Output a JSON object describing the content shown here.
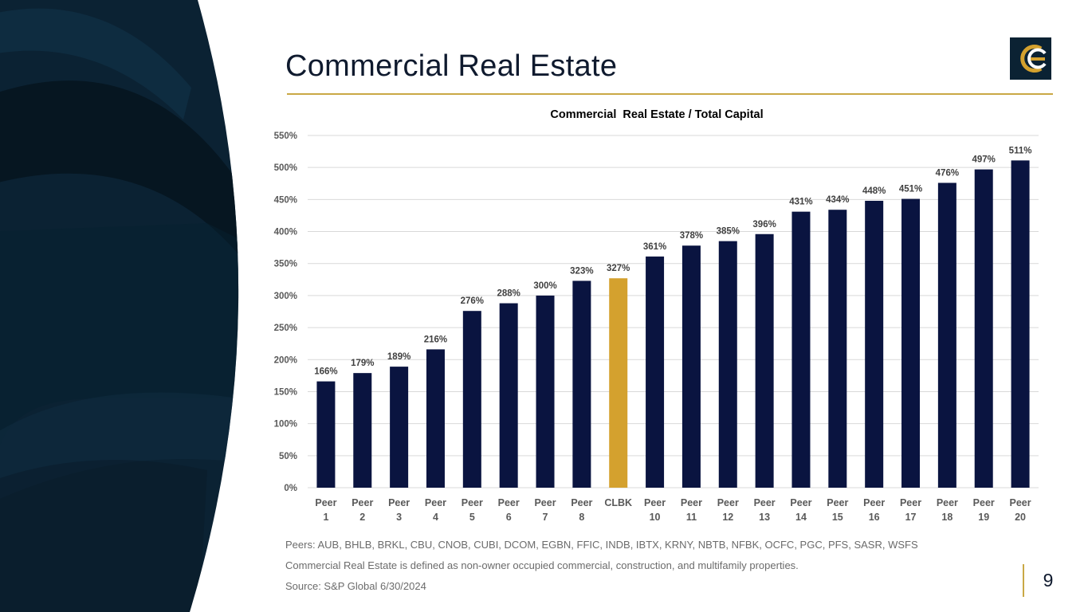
{
  "slide": {
    "title": "Commercial Real Estate",
    "page_number": "9"
  },
  "footnotes": {
    "peers": "Peers: AUB, BHLB, BRKL, CBU, CNOB, CUBI, DCOM, EGBN, FFIC, INDB, IBTX, KRNY, NBTB, NFBK, OCFC, PGC, PFS, SASR, WSFS",
    "definition": "Commercial Real Estate is defined as non-owner occupied commercial, construction, and multifamily properties.",
    "source": "Source: S&P Global 6/30/2024"
  },
  "colors": {
    "navy": "#0a1440",
    "gold": "#d4a12e",
    "accent_rule": "#c9a845",
    "bg_dark": "#0b2233"
  },
  "chart_data": {
    "type": "bar",
    "title": "Commercial  Real Estate / Total Capital",
    "xlabel": "",
    "ylabel": "",
    "ylim": [
      0,
      550
    ],
    "yticks": [
      0,
      50,
      100,
      150,
      200,
      250,
      300,
      350,
      400,
      450,
      500,
      550
    ],
    "ytick_labels": [
      "0%",
      "50%",
      "100%",
      "150%",
      "200%",
      "250%",
      "300%",
      "350%",
      "400%",
      "450%",
      "500%",
      "550%"
    ],
    "categories": [
      [
        "Peer",
        "1"
      ],
      [
        "Peer",
        "2"
      ],
      [
        "Peer",
        "3"
      ],
      [
        "Peer",
        "4"
      ],
      [
        "Peer",
        "5"
      ],
      [
        "Peer",
        "6"
      ],
      [
        "Peer",
        "7"
      ],
      [
        "Peer",
        "8"
      ],
      [
        "CLBK"
      ],
      [
        "Peer",
        "10"
      ],
      [
        "Peer",
        "11"
      ],
      [
        "Peer",
        "12"
      ],
      [
        "Peer",
        "13"
      ],
      [
        "Peer",
        "14"
      ],
      [
        "Peer",
        "15"
      ],
      [
        "Peer",
        "16"
      ],
      [
        "Peer",
        "17"
      ],
      [
        "Peer",
        "18"
      ],
      [
        "Peer",
        "19"
      ],
      [
        "Peer",
        "20"
      ]
    ],
    "values": [
      166,
      179,
      189,
      216,
      276,
      288,
      300,
      323,
      327,
      361,
      378,
      385,
      396,
      431,
      434,
      448,
      451,
      476,
      497,
      511
    ],
    "data_labels": [
      "166%",
      "179%",
      "189%",
      "216%",
      "276%",
      "288%",
      "300%",
      "323%",
      "327%",
      "361%",
      "378%",
      "385%",
      "396%",
      "431%",
      "434%",
      "448%",
      "451%",
      "476%",
      "497%",
      "511%"
    ],
    "highlight_index": 8,
    "grid": true,
    "legend": "none"
  }
}
